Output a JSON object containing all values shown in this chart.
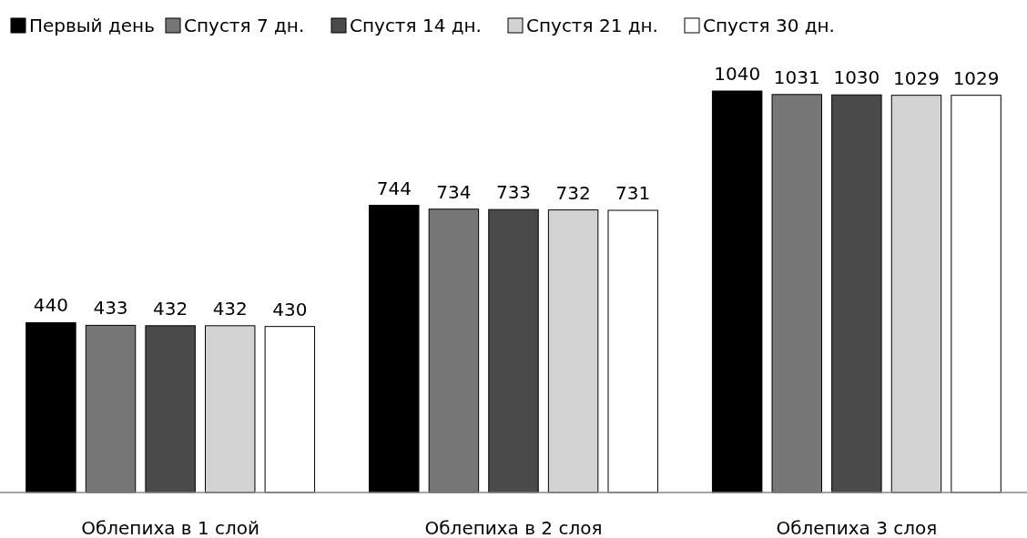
{
  "chart_data": {
    "type": "bar",
    "categories": [
      "Облепиха в 1 слой",
      "Облепиха в 2 слоя",
      "Облепиха 3 слоя"
    ],
    "series": [
      {
        "name": "Первый день",
        "color": "#000000",
        "values": [
          440,
          744,
          1040
        ]
      },
      {
        "name": "Спустя 7 дн.",
        "color": "#777777",
        "values": [
          433,
          734,
          1031
        ]
      },
      {
        "name": "Спустя 14 дн.",
        "color": "#4a4a4a",
        "values": [
          432,
          733,
          1030
        ]
      },
      {
        "name": "Спустя 21 дн.",
        "color": "#d3d3d3",
        "values": [
          432,
          732,
          1029
        ]
      },
      {
        "name": "Спустя 30 дн.",
        "color": "#ffffff",
        "values": [
          430,
          731,
          1029
        ]
      }
    ],
    "data_labels": true,
    "legend": "top"
  }
}
